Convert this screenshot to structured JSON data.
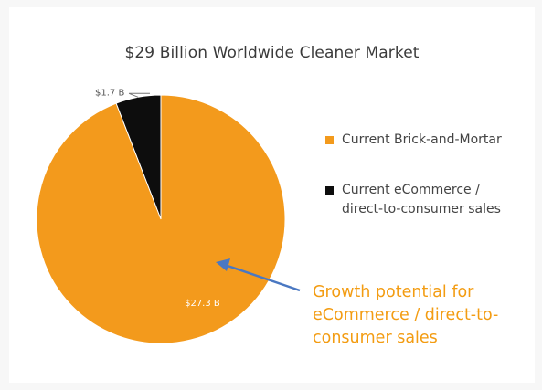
{
  "chart_data": {
    "type": "pie",
    "title": "$29 Billion Worldwide Cleaner Market",
    "slices": [
      {
        "label": "Current eCommerce / direct-to-consumer sales",
        "value": 1.7,
        "data_label": "$1.7 B",
        "color": "#0d0d0d"
      },
      {
        "label": "Current Brick-and-Mortar",
        "value": 27.3,
        "data_label": "$27.3 B",
        "color": "#f39a1c"
      }
    ],
    "legend": {
      "placement": "right",
      "entries": [
        "Current Brick-and-Mortar",
        "Current eCommerce / direct-to-consumer sales"
      ]
    },
    "annotation": "Growth potential for eCommerce / direct-to-consumer sales"
  },
  "colors": {
    "brick_and_mortar": "#f39a1c",
    "ecommerce": "#0d0d0d",
    "annotation_text": "#f39c12",
    "arrow": "#4a78c2"
  }
}
